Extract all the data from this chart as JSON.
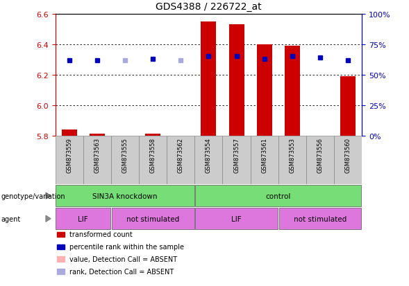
{
  "title": "GDS4388 / 226722_at",
  "samples": [
    "GSM873559",
    "GSM873563",
    "GSM873555",
    "GSM873558",
    "GSM873562",
    "GSM873554",
    "GSM873557",
    "GSM873561",
    "GSM873553",
    "GSM873556",
    "GSM873560"
  ],
  "bar_values": [
    5.84,
    5.81,
    5.8,
    5.81,
    5.8,
    6.55,
    6.53,
    6.4,
    6.39,
    5.8,
    6.19
  ],
  "bar_absent": [
    false,
    false,
    true,
    false,
    true,
    false,
    false,
    false,
    false,
    false,
    false
  ],
  "percentile_rank": [
    62,
    62,
    62,
    63,
    62,
    65,
    65,
    63,
    65,
    64,
    62
  ],
  "rank_absent": [
    false,
    false,
    true,
    false,
    true,
    false,
    false,
    false,
    false,
    false,
    false
  ],
  "y_min": 5.8,
  "y_max": 6.6,
  "y_ticks": [
    5.8,
    6.0,
    6.2,
    6.4,
    6.6
  ],
  "y2_ticks": [
    0,
    25,
    50,
    75,
    100
  ],
  "color_bar_present": "#cc0000",
  "color_bar_absent": "#ffb0b0",
  "color_rank_present": "#0000bb",
  "color_rank_absent": "#aaaadd",
  "background_color": "#ffffff",
  "grid_color": "#000000",
  "genotype_groups": [
    {
      "label": "SIN3A knockdown",
      "start": 0,
      "end": 5,
      "color": "#77dd77"
    },
    {
      "label": "control",
      "start": 5,
      "end": 11,
      "color": "#77dd77"
    }
  ],
  "agent_groups": [
    {
      "label": "LIF",
      "start": 0,
      "end": 2,
      "color": "#dd77dd"
    },
    {
      "label": "not stimulated",
      "start": 2,
      "end": 5,
      "color": "#dd77dd"
    },
    {
      "label": "LIF",
      "start": 5,
      "end": 8,
      "color": "#dd77dd"
    },
    {
      "label": "not stimulated",
      "start": 8,
      "end": 11,
      "color": "#dd77dd"
    }
  ],
  "legend_items": [
    {
      "label": "transformed count",
      "color": "#cc0000"
    },
    {
      "label": "percentile rank within the sample",
      "color": "#0000bb"
    },
    {
      "label": "value, Detection Call = ABSENT",
      "color": "#ffb0b0"
    },
    {
      "label": "rank, Detection Call = ABSENT",
      "color": "#aaaadd"
    }
  ],
  "left_labels": [
    {
      "text": "genotype/variation",
      "row": "geno"
    },
    {
      "text": "agent",
      "row": "agent"
    }
  ]
}
